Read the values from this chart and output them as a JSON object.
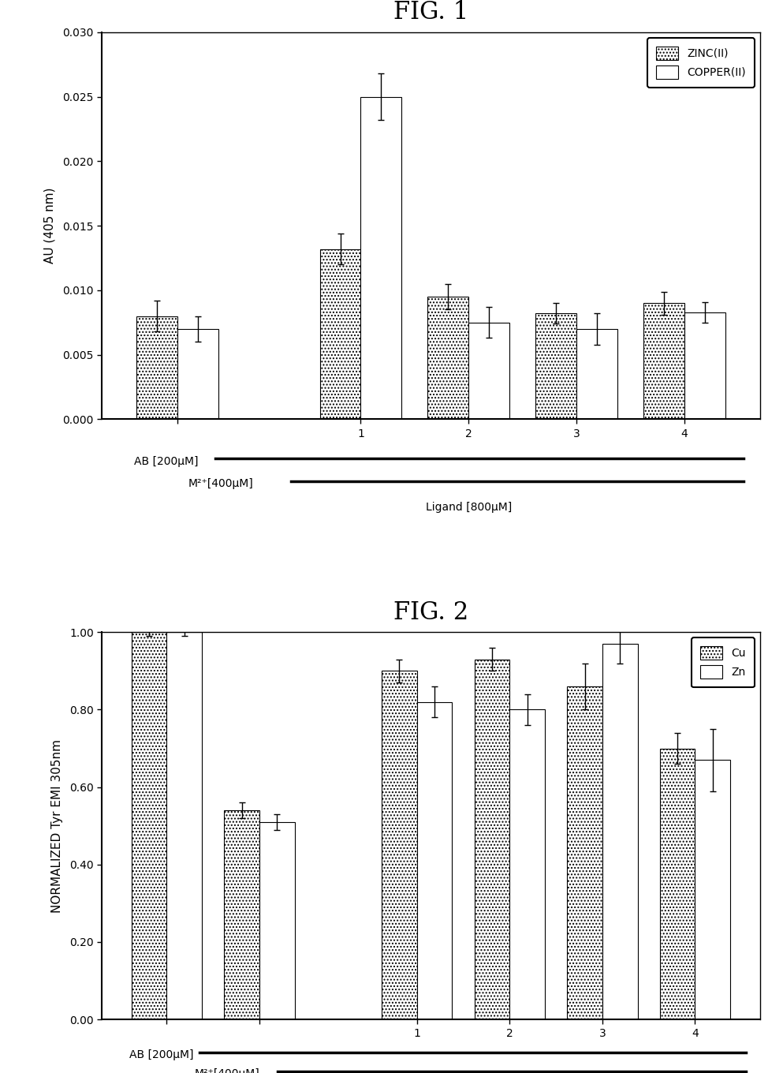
{
  "fig1": {
    "title": "FIG. 1",
    "ylabel": "AU (405 nm)",
    "ylim": [
      0.0,
      0.03
    ],
    "yticks": [
      0.0,
      0.005,
      0.01,
      0.015,
      0.02,
      0.025,
      0.03
    ],
    "zinc_values": [
      0.008,
      0.0132,
      0.0095,
      0.0082,
      0.009
    ],
    "copper_values": [
      0.007,
      0.025,
      0.0075,
      0.007,
      0.0083
    ],
    "zinc_errors": [
      0.0012,
      0.0012,
      0.001,
      0.0008,
      0.0009
    ],
    "copper_errors": [
      0.001,
      0.0018,
      0.0012,
      0.0012,
      0.0008
    ],
    "legend_zinc": "ZINC(II)",
    "legend_copper": "COPPER(II)",
    "group_labels": [
      "",
      "1",
      "2",
      "3",
      "4"
    ],
    "group_positions": [
      0.5,
      2.2,
      3.2,
      4.2,
      5.2
    ]
  },
  "fig2": {
    "title": "FIG. 2",
    "ylabel": "NORMALIZED Tyr EMI 305nm",
    "ylim": [
      0.0,
      1.0
    ],
    "yticks": [
      0.0,
      0.2,
      0.4,
      0.6,
      0.8,
      1.0
    ],
    "cu_values": [
      1.0,
      0.54,
      0.9,
      0.93,
      0.86,
      0.7
    ],
    "zn_values": [
      1.0,
      0.51,
      0.82,
      0.8,
      0.97,
      0.67
    ],
    "cu_errors": [
      0.01,
      0.02,
      0.03,
      0.03,
      0.06,
      0.04
    ],
    "zn_errors": [
      0.01,
      0.02,
      0.04,
      0.04,
      0.05,
      0.08
    ],
    "legend_cu": "Cu",
    "legend_zn": "Zn",
    "group_labels": [
      "",
      "",
      "1",
      "2",
      "3",
      "4"
    ],
    "group_positions": [
      0.5,
      1.5,
      3.2,
      4.2,
      5.2,
      6.2
    ]
  },
  "background_color": "#ffffff",
  "bar_width": 0.38,
  "hatch_pattern": "....",
  "figsize": [
    9.935,
    13.6
  ],
  "dpi": 100
}
